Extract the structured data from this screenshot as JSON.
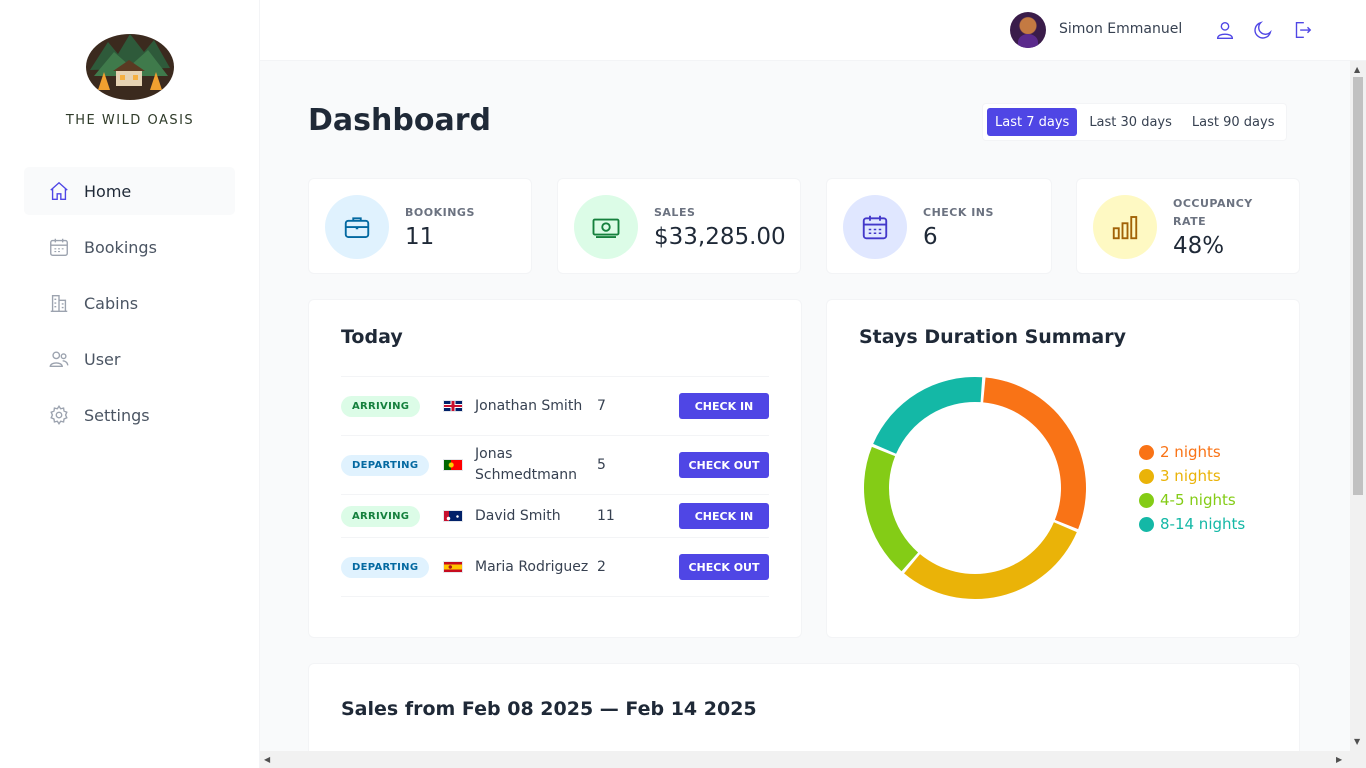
{
  "brand": {
    "name": "THE WILD OASIS"
  },
  "sidebar": {
    "items": [
      {
        "label": "Home",
        "icon": "home-icon",
        "active": true
      },
      {
        "label": "Bookings",
        "icon": "calendar-icon"
      },
      {
        "label": "Cabins",
        "icon": "building-icon"
      },
      {
        "label": "User",
        "icon": "users-icon"
      },
      {
        "label": "Settings",
        "icon": "gear-icon"
      }
    ]
  },
  "header": {
    "user_name": "Simon Emmanuel",
    "icons": [
      "user-icon",
      "moon-icon",
      "logout-icon"
    ]
  },
  "dashboard": {
    "title": "Dashboard",
    "filters": [
      "Last 7 days",
      "Last 30 days",
      "Last 90 days"
    ],
    "active_filter": "Last 7 days"
  },
  "stats": [
    {
      "label": "BOOKINGS",
      "value": "11",
      "icon": "briefcase-icon",
      "color": "#e0f2fe",
      "icon_color": "#0369a1"
    },
    {
      "label": "SALES",
      "value": "$33,285.00",
      "icon": "banknotes-icon",
      "color": "#dcfce7",
      "icon_color": "#15803d"
    },
    {
      "label": "CHECK INS",
      "value": "6",
      "icon": "calendar-days-icon",
      "color": "#e0e7ff",
      "icon_color": "#4338ca"
    },
    {
      "label": "OCCUPANCY RATE",
      "value": "48%",
      "icon": "chart-bar-icon",
      "color": "#fef9c3",
      "icon_color": "#a16207"
    }
  ],
  "today": {
    "title": "Today",
    "rows": [
      {
        "status": "ARRIVING",
        "flag": "gb",
        "guest": "Jonathan Smith",
        "nights": "7",
        "action": "CHECK IN"
      },
      {
        "status": "DEPARTING",
        "flag": "pt",
        "guest": "Jonas Schmedtmann",
        "nights": "5",
        "action": "CHECK OUT"
      },
      {
        "status": "ARRIVING",
        "flag": "au",
        "guest": "David Smith",
        "nights": "11",
        "action": "CHECK IN"
      },
      {
        "status": "DEPARTING",
        "flag": "es",
        "guest": "Maria Rodriguez",
        "nights": "2",
        "action": "CHECK OUT"
      }
    ]
  },
  "stays_summary": {
    "title": "Stays Duration Summary"
  },
  "chart_data": {
    "type": "pie",
    "donut": true,
    "legend_position": "right",
    "slices": [
      {
        "name": "2 nights",
        "value": 3,
        "color": "#f97316"
      },
      {
        "name": "3 nights",
        "value": 3,
        "color": "#eab308"
      },
      {
        "name": "4-5 nights",
        "value": 2,
        "color": "#84cc16"
      },
      {
        "name": "8-14 nights",
        "value": 2,
        "color": "#14b8a6"
      }
    ]
  },
  "sales": {
    "title": "Sales from Feb 08 2025 — Feb 14 2025"
  }
}
